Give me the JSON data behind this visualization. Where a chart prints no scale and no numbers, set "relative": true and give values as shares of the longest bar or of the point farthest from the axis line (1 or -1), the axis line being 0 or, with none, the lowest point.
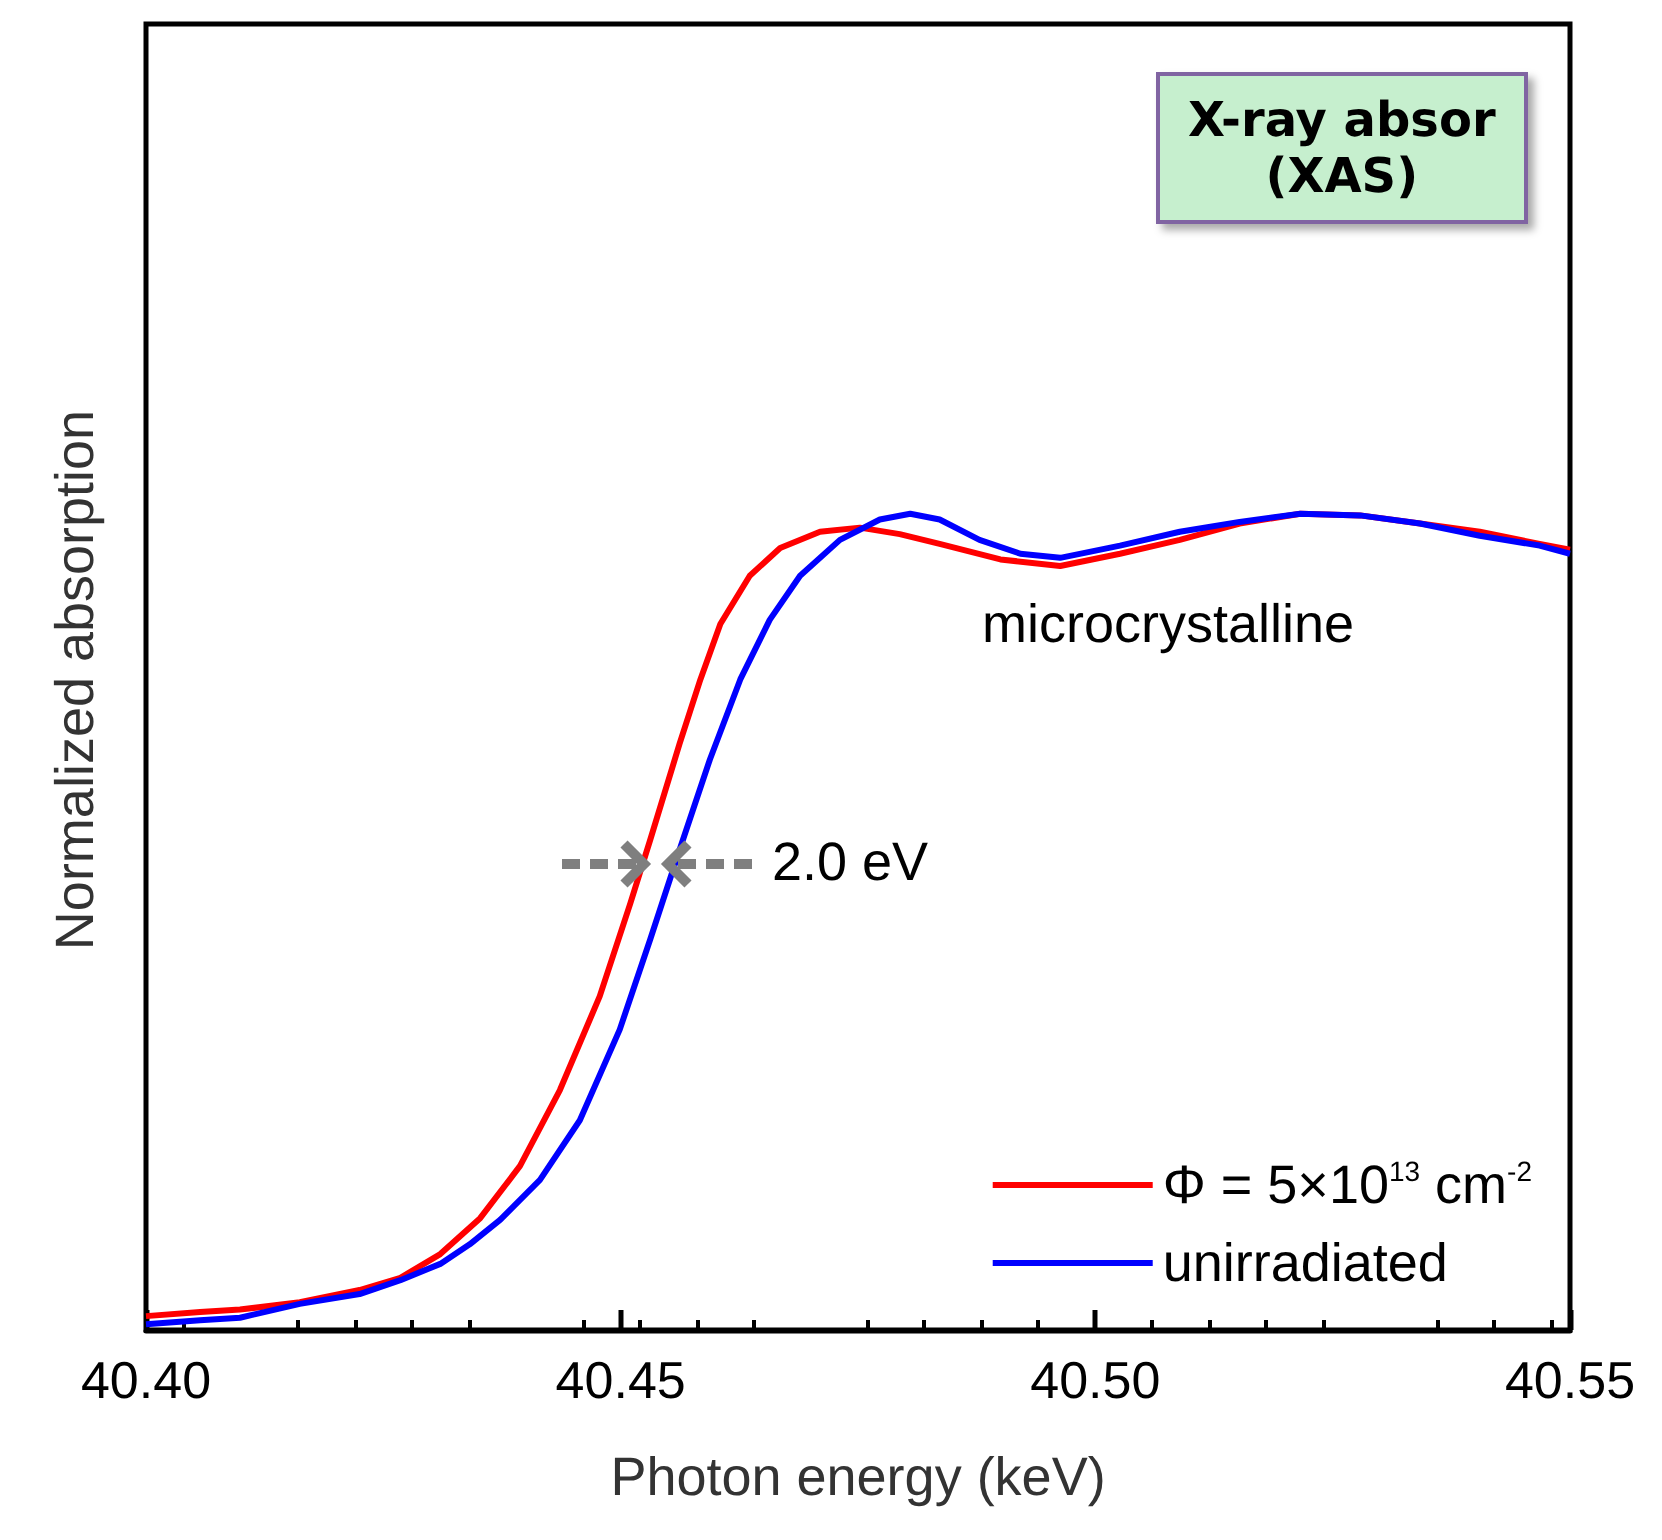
{
  "chart_data": {
    "type": "line",
    "relative": true,
    "xlabel": "Photon energy (keV)",
    "ylabel": "Normalized absorption",
    "xlim": [
      40.4,
      40.55
    ],
    "xticks": [
      {
        "value": 40.4,
        "label": "40.40"
      },
      {
        "value": 40.45,
        "label": "40.45"
      },
      {
        "value": 40.5,
        "label": "40.50"
      },
      {
        "value": 40.55,
        "label": "40.55"
      }
    ],
    "legend": "bottom right",
    "grid": false,
    "line_style": "solid",
    "annotations": [
      "microcrystalline",
      "2.0 eV",
      "X-ray absor\n(XAS)"
    ],
    "series": [
      {
        "name": "Φ = 5×10$^{13}$ cm$^{-2}$",
        "color": "#ff0000",
        "x": [
          40.4,
          40.4057,
          40.4099,
          40.4162,
          40.4225,
          40.4268,
          40.431,
          40.4352,
          40.4394,
          40.4436,
          40.4478,
          40.451,
          40.4531,
          40.4562,
          40.4584,
          40.4605,
          40.4636,
          40.4668,
          40.471,
          40.4752,
          40.4794,
          40.4836,
          40.49,
          40.4963,
          40.5026,
          40.5089,
          40.5152,
          40.5216,
          40.5279,
          40.5342,
          40.5405,
          40.5468,
          40.55
        ],
        "values": [
          0.017,
          0.022,
          0.025,
          0.034,
          0.049,
          0.064,
          0.093,
          0.137,
          0.201,
          0.294,
          0.409,
          0.522,
          0.6,
          0.718,
          0.797,
          0.865,
          0.924,
          0.958,
          0.978,
          0.983,
          0.975,
          0.963,
          0.944,
          0.936,
          0.951,
          0.968,
          0.988,
          1.0,
          0.998,
          0.988,
          0.978,
          0.963,
          0.956
        ]
      },
      {
        "name": "unirradiated",
        "color": "#0000ff",
        "x": [
          40.4,
          40.4057,
          40.4099,
          40.4162,
          40.4225,
          40.4268,
          40.431,
          40.4341,
          40.4373,
          40.4415,
          40.4457,
          40.4499,
          40.4531,
          40.4562,
          40.4594,
          40.4626,
          40.4657,
          40.4689,
          40.4731,
          40.4773,
          40.4805,
          40.4836,
          40.4878,
          40.4921,
          40.4963,
          40.5026,
          40.5089,
          40.5152,
          40.5216,
          40.5279,
          40.5342,
          40.5405,
          40.5468,
          40.55
        ],
        "values": [
          0.007,
          0.012,
          0.015,
          0.032,
          0.044,
          0.061,
          0.081,
          0.105,
          0.135,
          0.184,
          0.257,
          0.368,
          0.478,
          0.588,
          0.699,
          0.797,
          0.87,
          0.924,
          0.968,
          0.993,
          1.0,
          0.993,
          0.968,
          0.951,
          0.946,
          0.961,
          0.978,
          0.99,
          1.0,
          0.998,
          0.988,
          0.973,
          0.961,
          0.951
        ]
      }
    ]
  }
}
